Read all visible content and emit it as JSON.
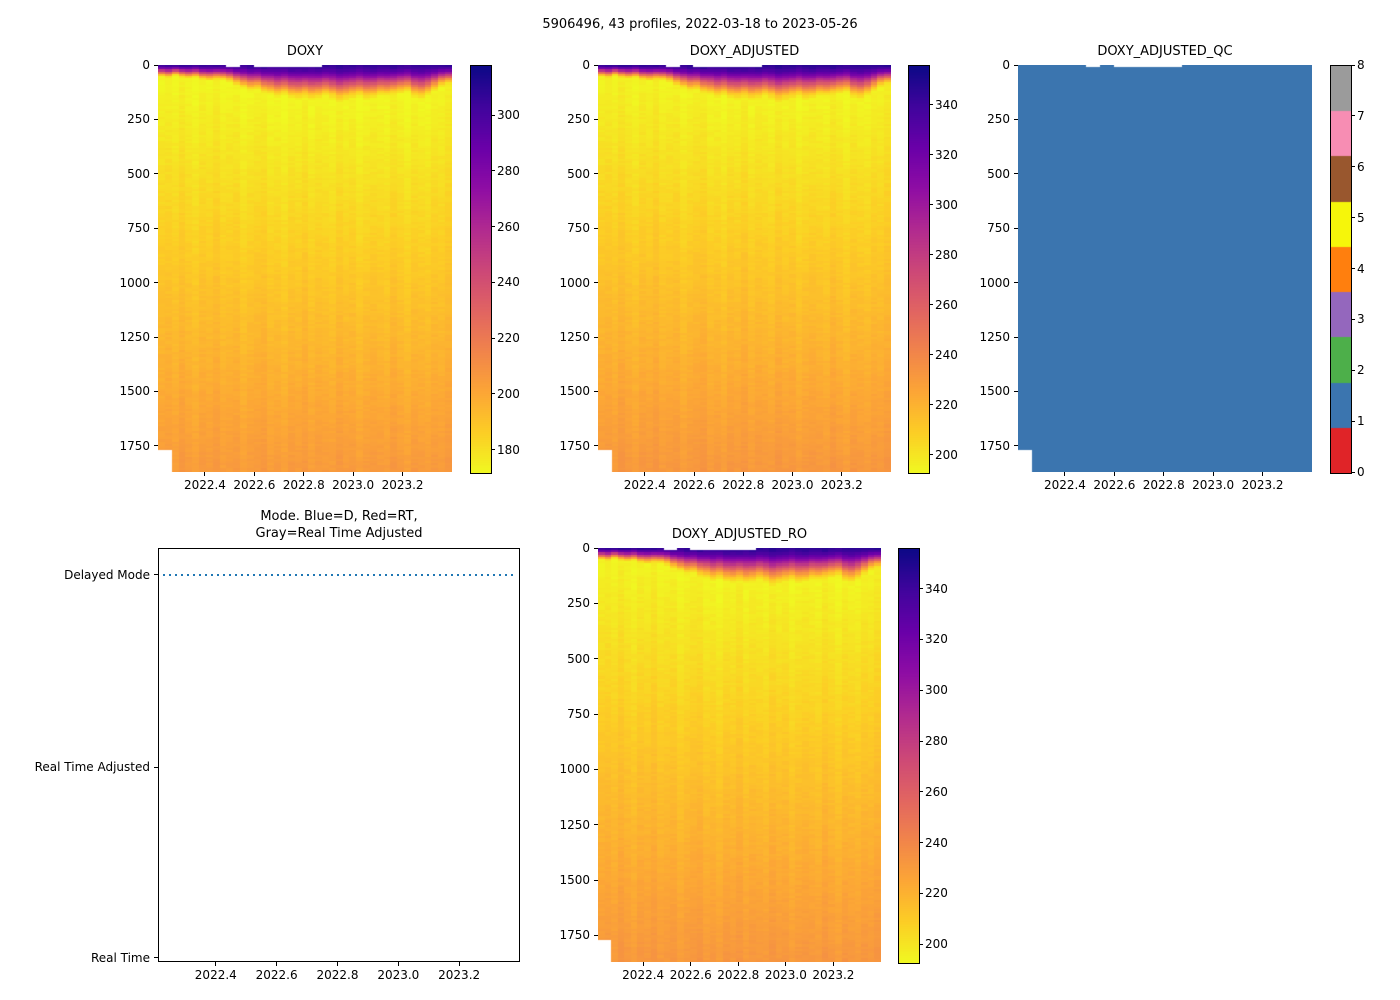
{
  "suptitle": "5906496, 43 profiles, 2022-03-18 to 2023-05-26",
  "colors": {
    "background": "#ffffff",
    "qc_fill": "#3b75af",
    "mode_line": "#1f77b4",
    "missing": "#ffffff",
    "tick": "#000000"
  },
  "plasma_stops": [
    [
      0.0,
      "#0d0887"
    ],
    [
      0.1,
      "#41049d"
    ],
    [
      0.2,
      "#6a00a8"
    ],
    [
      0.3,
      "#8f0da4"
    ],
    [
      0.4,
      "#b12a90"
    ],
    [
      0.5,
      "#cc4778"
    ],
    [
      0.6,
      "#e16462"
    ],
    [
      0.7,
      "#f1844b"
    ],
    [
      0.8,
      "#fca636"
    ],
    [
      0.9,
      "#fcce25"
    ],
    [
      1.0,
      "#f0f921"
    ]
  ],
  "chart_data": {
    "common": {
      "n_profiles": 43,
      "x_range": [
        2022.21,
        2023.4
      ],
      "xticks": [
        2022.4,
        2022.6,
        2022.8,
        2023.0,
        2023.2
      ],
      "depth_range": [
        0,
        1870
      ],
      "yticks": [
        0,
        250,
        500,
        750,
        1000,
        1250,
        1500,
        1750
      ],
      "cell_depth": 10,
      "cap_top_value": 308,
      "cap_min_value": 173,
      "deep_bottom_value": 206,
      "cap_shape": [
        [
          0,
          1.0
        ],
        [
          0.12,
          0.96
        ],
        [
          0.3,
          0.8
        ],
        [
          0.5,
          0.55
        ],
        [
          0.7,
          0.28
        ],
        [
          0.85,
          0.1
        ],
        [
          1,
          0
        ]
      ],
      "mld_per_profile": [
        55,
        60,
        50,
        58,
        65,
        60,
        70,
        75,
        68,
        72,
        80,
        95,
        110,
        120,
        115,
        130,
        140,
        150,
        145,
        155,
        160,
        150,
        165,
        158,
        148,
        160,
        170,
        165,
        155,
        150,
        160,
        155,
        145,
        150,
        140,
        135,
        130,
        150,
        160,
        145,
        120,
        100,
        90
      ],
      "offset_per_profile": [
        0,
        1,
        -1,
        2,
        0,
        -2,
        1,
        0,
        2,
        -1,
        0,
        1,
        -2,
        0,
        1,
        2,
        -1,
        0,
        -2,
        1,
        0,
        2,
        -1,
        1,
        0,
        -1,
        2,
        0,
        1,
        -2,
        0,
        1,
        0,
        -1,
        2,
        0,
        -2,
        1,
        0,
        -1,
        1,
        0,
        2
      ],
      "missing_top": [
        {
          "start": 10,
          "end": 11,
          "depth": 14
        },
        {
          "start": 14,
          "end": 23,
          "depth": 14
        }
      ],
      "missing_bottom": {
        "start": 0,
        "end": 1,
        "from_depth": 1770
      }
    },
    "charts": [
      {
        "id": "doxy",
        "kind": "heatmap",
        "title": "DOXY",
        "scale": 1.0,
        "vmin": 172,
        "vmax": 318,
        "cbar_ticks": [
          180,
          200,
          220,
          240,
          260,
          280,
          300
        ]
      },
      {
        "id": "doxy_adjusted",
        "kind": "heatmap",
        "title": "DOXY_ADJUSTED",
        "scale": 1.128,
        "vmin": 193,
        "vmax": 356,
        "cbar_ticks": [
          200,
          220,
          240,
          260,
          280,
          300,
          320,
          340
        ]
      },
      {
        "id": "qc",
        "kind": "qc",
        "title": "DOXY_ADJUSTED_QC",
        "qc_value": 1,
        "cbar_ticks": [
          0,
          1,
          2,
          3,
          4,
          5,
          6,
          7,
          8
        ],
        "qc_colors": [
          "#e02428",
          "#3b75af",
          "#4daf4a",
          "#9467bd",
          "#ff7f0e",
          "#f6f60a",
          "#99572e",
          "#f78db3",
          "#9b9b9b"
        ]
      },
      {
        "id": "mode",
        "kind": "mode",
        "title_line1": "Mode. Blue=D, Red=RT,",
        "title_line2": "Gray=Real Time Adjusted",
        "categories": [
          "Delayed Mode",
          "Real Time Adjusted",
          "Real Time"
        ],
        "line_at": "Delayed Mode"
      },
      {
        "id": "doxy_adjusted_ro",
        "kind": "heatmap",
        "title": "DOXY_ADJUSTED_RO",
        "scale": 1.128,
        "vmin": 193,
        "vmax": 356,
        "cbar_ticks": [
          200,
          220,
          240,
          260,
          280,
          300,
          320,
          340
        ]
      }
    ]
  }
}
